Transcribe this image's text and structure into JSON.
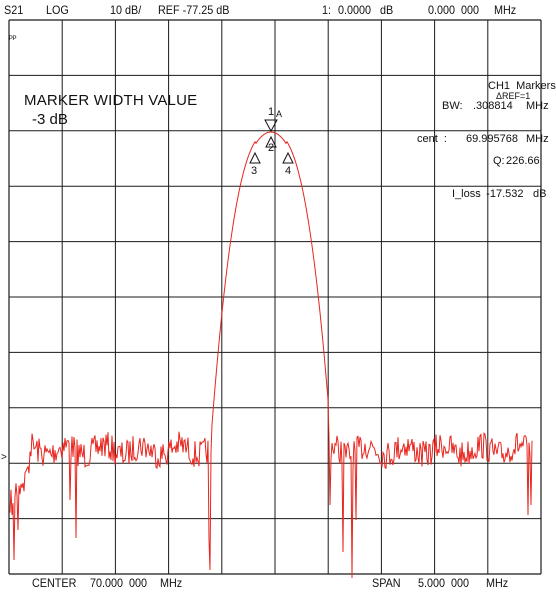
{
  "status_bar": {
    "param": "S21",
    "format": "LOG",
    "scale": "10 dB/",
    "ref": "REF -77.25 dB",
    "marker_index": "1:",
    "marker_value": "0.0000",
    "marker_unit": "dB",
    "freq_value": "0.000  000",
    "freq_unit": "MHz"
  },
  "footer": {
    "center_label": "CENTER",
    "center_value": "70.000  000",
    "center_unit": "MHz",
    "span_label": "SPAN",
    "span_value": "5.000  000",
    "span_unit": "MHz"
  },
  "annotations": {
    "corner_flag": "ᴾᴾ",
    "ref_arrow": ">",
    "marker_width_title": "MARKER WIDTH VALUE",
    "marker_width_level": "-3 dB"
  },
  "marker_table": {
    "header": "CH1  Markers",
    "ref_mode": "ΔREF=1",
    "bw_label": "BW:",
    "bw_value": ".308814",
    "bw_unit": "MHz",
    "cent_label": "cent  :",
    "cent_value": "69.995768",
    "cent_unit": "MHz",
    "q_label": "Q:",
    "q_value": "226.66",
    "loss_label": "I_loss",
    "loss_value": ":  -17.532",
    "loss_unit": "dB"
  },
  "markers": [
    {
      "id": "1",
      "tag": "A"
    },
    {
      "id": "2"
    },
    {
      "id": "3"
    },
    {
      "id": "4"
    }
  ],
  "colors": {
    "trace": "#e8251e",
    "grid": "#1a1a1a",
    "background": "#ffffff"
  }
}
